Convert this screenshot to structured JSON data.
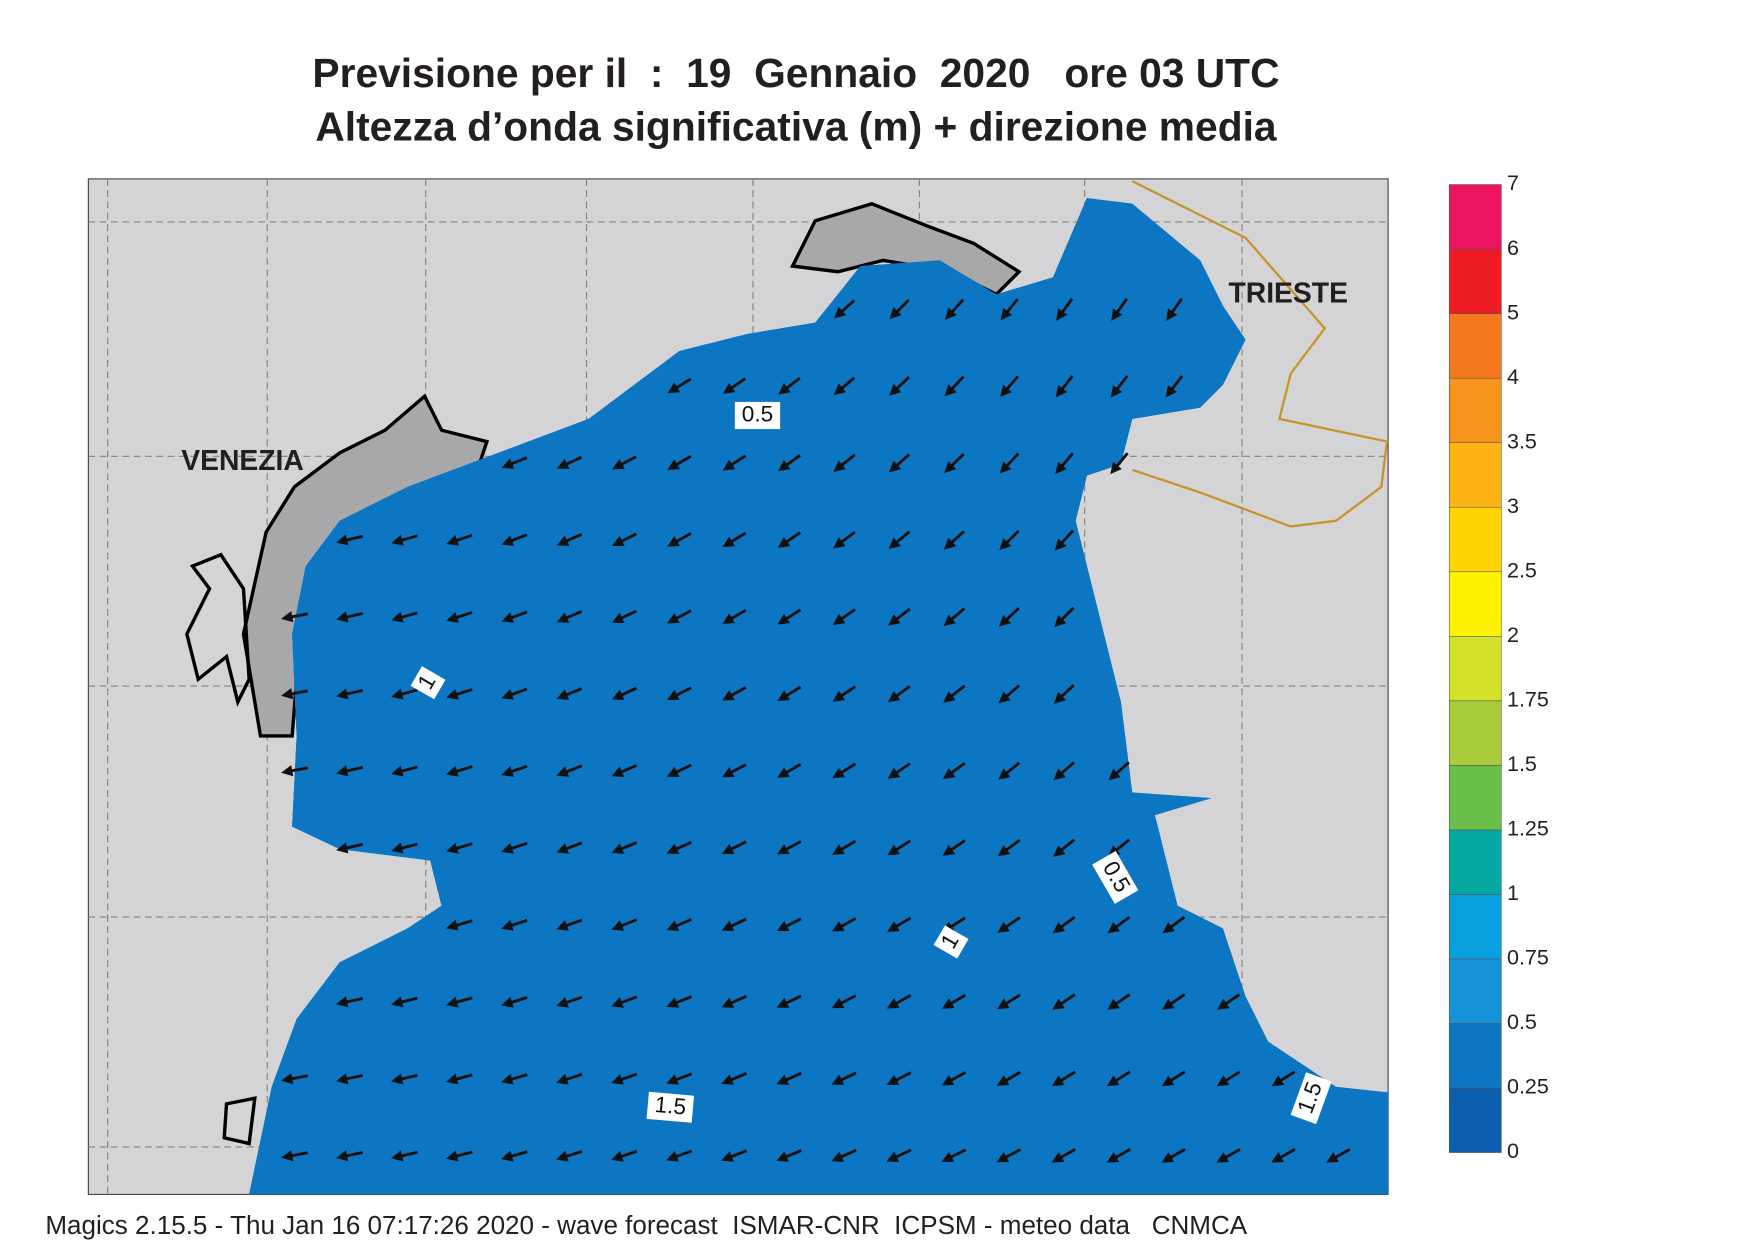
{
  "header": {
    "title": "Previsione per il  :  19  Gennaio  2020   ore 03 UTC",
    "subtitle": "Altezza d’onda significativa (m) + direzione media"
  },
  "map": {
    "place_labels": [
      "VENEZIA",
      "TRIESTE"
    ],
    "contour_labels": [
      "0.5",
      "0.5",
      "1",
      "1",
      "1.5",
      "1.5"
    ]
  },
  "colorbar": {
    "levels": [
      0,
      0.25,
      0.5,
      0.75,
      1,
      1.25,
      1.5,
      1.75,
      2,
      2.5,
      3,
      3.5,
      4,
      5,
      6,
      7
    ],
    "colors": [
      "#0b5fae",
      "#0c76c2",
      "#1592d8",
      "#0aa0e0",
      "#05a8a0",
      "#6abf4b",
      "#a8cc3a",
      "#d4e12a",
      "#fff200",
      "#ffd400",
      "#fdb515",
      "#f7941d",
      "#f47920",
      "#ed1c24",
      "#ec1460"
    ]
  },
  "footer": "Magics 2.15.5 - Thu Jan 16 07:17:26 2020 - wave forecast  ISMAR-CNR  ICPSM - meteo data   CNMCA"
}
